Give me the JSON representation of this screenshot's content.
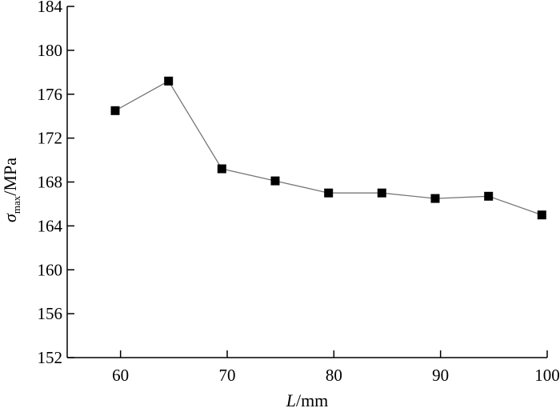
{
  "chart_data": {
    "type": "line",
    "x": [
      59.5,
      64.5,
      69.5,
      74.5,
      79.5,
      84.5,
      89.5,
      94.5,
      99.5
    ],
    "series": [
      {
        "values": [
          174.5,
          177.2,
          169.2,
          168.1,
          167.0,
          167.0,
          166.5,
          166.7,
          165.0
        ]
      }
    ],
    "xlabel": {
      "symbol": "L",
      "unit": "/mm"
    },
    "ylabel": {
      "symbol": "σ",
      "subscript": "max",
      "unit": "/MPa"
    },
    "xlim": [
      55,
      100
    ],
    "ylim": [
      152,
      184
    ],
    "xticks": [
      60,
      70,
      80,
      90,
      100
    ],
    "yticks": [
      152,
      156,
      160,
      164,
      168,
      172,
      176,
      180,
      184
    ],
    "grid": false,
    "marker": "square",
    "line_color": "#777777",
    "marker_color": "#000000"
  }
}
